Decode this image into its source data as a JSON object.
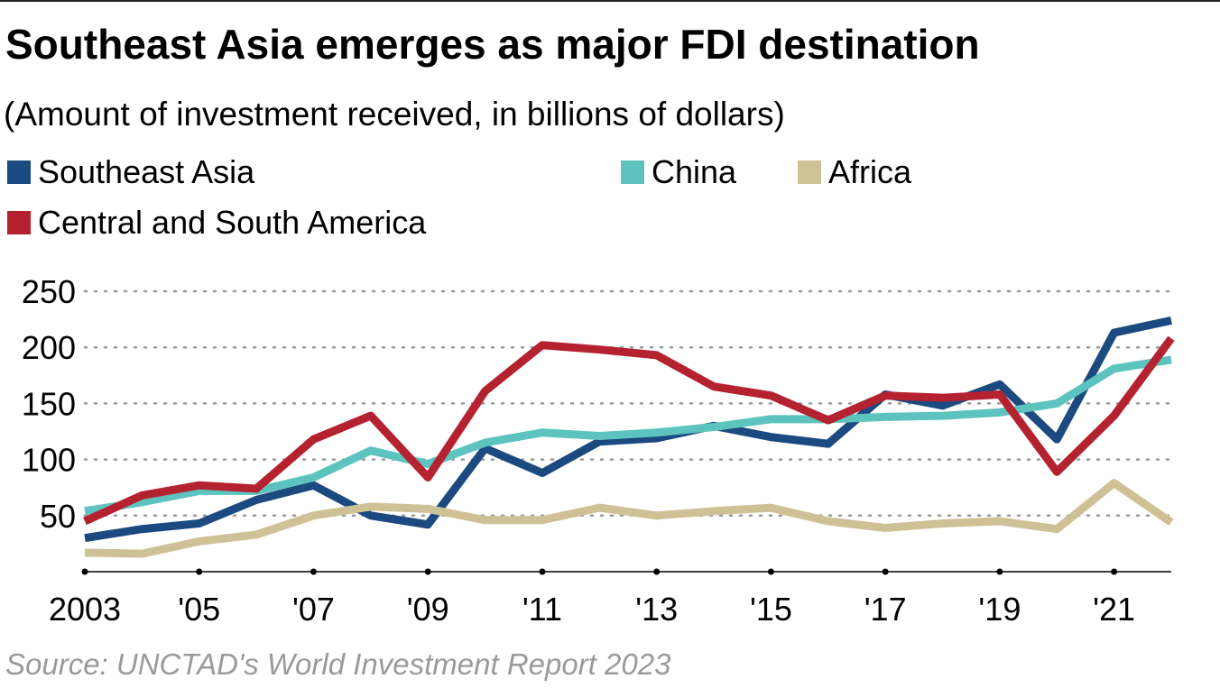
{
  "chart_data": {
    "type": "line",
    "title": "Southeast Asia emerges as major FDI destination",
    "subtitle": "(Amount of investment received, in billions of dollars)",
    "source": "Source: UNCTAD's World Investment Report 2023",
    "x": [
      2003,
      2004,
      2005,
      2006,
      2007,
      2008,
      2009,
      2010,
      2011,
      2012,
      2013,
      2014,
      2015,
      2016,
      2017,
      2018,
      2019,
      2020,
      2021,
      2022
    ],
    "x_tick_values": [
      2003,
      2005,
      2007,
      2009,
      2011,
      2013,
      2015,
      2017,
      2019,
      2021
    ],
    "x_tick_labels": [
      "2003",
      "'05",
      "'07",
      "'09",
      "'11",
      "'13",
      "'15",
      "'17",
      "'19",
      "'21"
    ],
    "y_tick_values": [
      50,
      100,
      150,
      200,
      250
    ],
    "y_tick_labels": [
      "50",
      "100",
      "150",
      "200",
      "250"
    ],
    "ylim": [
      0,
      250
    ],
    "grid": "horizontal dotted",
    "legend_placement": "top",
    "series": [
      {
        "name": "Southeast Asia",
        "color": "#1b4a80",
        "values": [
          30,
          38,
          43,
          64,
          77,
          50,
          42,
          110,
          88,
          116,
          119,
          130,
          120,
          114,
          158,
          148,
          167,
          118,
          213,
          224
        ]
      },
      {
        "name": "China",
        "color": "#5cc3bf",
        "values": [
          54,
          62,
          72,
          72,
          84,
          108,
          96,
          115,
          124,
          121,
          124,
          129,
          136,
          136,
          138,
          139,
          142,
          150,
          181,
          189
        ]
      },
      {
        "name": "Africa",
        "color": "#cfc196",
        "values": [
          17,
          16,
          27,
          33,
          50,
          58,
          56,
          46,
          46,
          57,
          50,
          54,
          57,
          45,
          39,
          43,
          45,
          38,
          79,
          44
        ]
      },
      {
        "name": "Central and South America",
        "color": "#b5222f",
        "values": [
          45,
          68,
          77,
          74,
          118,
          139,
          84,
          161,
          202,
          198,
          193,
          165,
          157,
          135,
          157,
          155,
          158,
          89,
          139,
          208
        ]
      }
    ]
  }
}
